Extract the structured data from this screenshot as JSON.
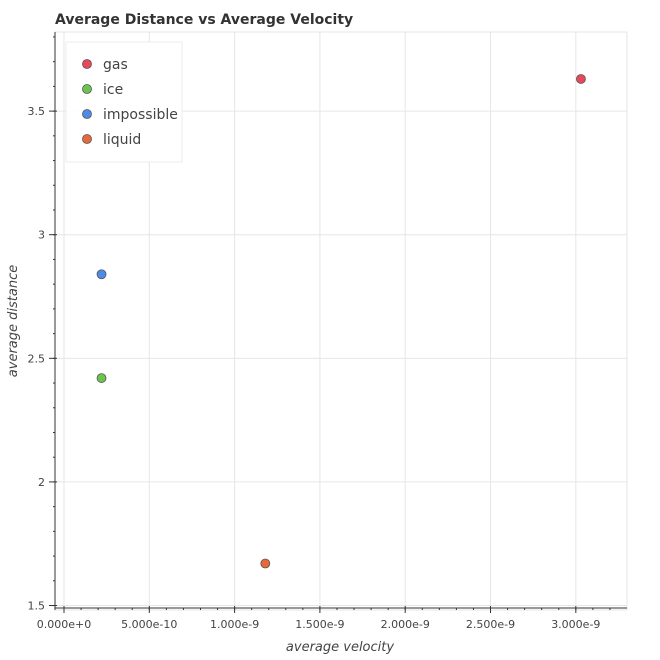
{
  "chart_data": {
    "type": "scatter",
    "title": "Average Distance vs Average Velocity",
    "xlabel": "average velocity",
    "ylabel": "average distance",
    "xlim": [
      0,
      3.3e-09
    ],
    "ylim": [
      1.49,
      3.82
    ],
    "x_ticks": [
      0,
      5e-10,
      1e-09,
      1.5e-09,
      2e-09,
      2.5e-09,
      3e-09
    ],
    "x_tick_labels": [
      "0.000e+0",
      "5.000e-10",
      "1.000e-9",
      "1.500e-9",
      "2.000e-9",
      "2.500e-9",
      "3.000e-9"
    ],
    "y_ticks": [
      1.5,
      2,
      2.5,
      3,
      3.5
    ],
    "y_tick_labels": [
      "1.5",
      "2",
      "2.5",
      "3",
      "3.5"
    ],
    "grid": true,
    "legend_position": "top-left",
    "series": [
      {
        "name": "gas",
        "color": "#e8485a",
        "points": [
          {
            "x": 3.03e-09,
            "y": 3.63
          }
        ]
      },
      {
        "name": "ice",
        "color": "#6cc44a",
        "points": [
          {
            "x": 2.2e-10,
            "y": 2.42
          }
        ]
      },
      {
        "name": "impossible",
        "color": "#4d8be8",
        "points": [
          {
            "x": 2.2e-10,
            "y": 2.84
          }
        ]
      },
      {
        "name": "liquid",
        "color": "#e8683a",
        "points": [
          {
            "x": 1.18e-09,
            "y": 1.67
          }
        ]
      }
    ]
  }
}
